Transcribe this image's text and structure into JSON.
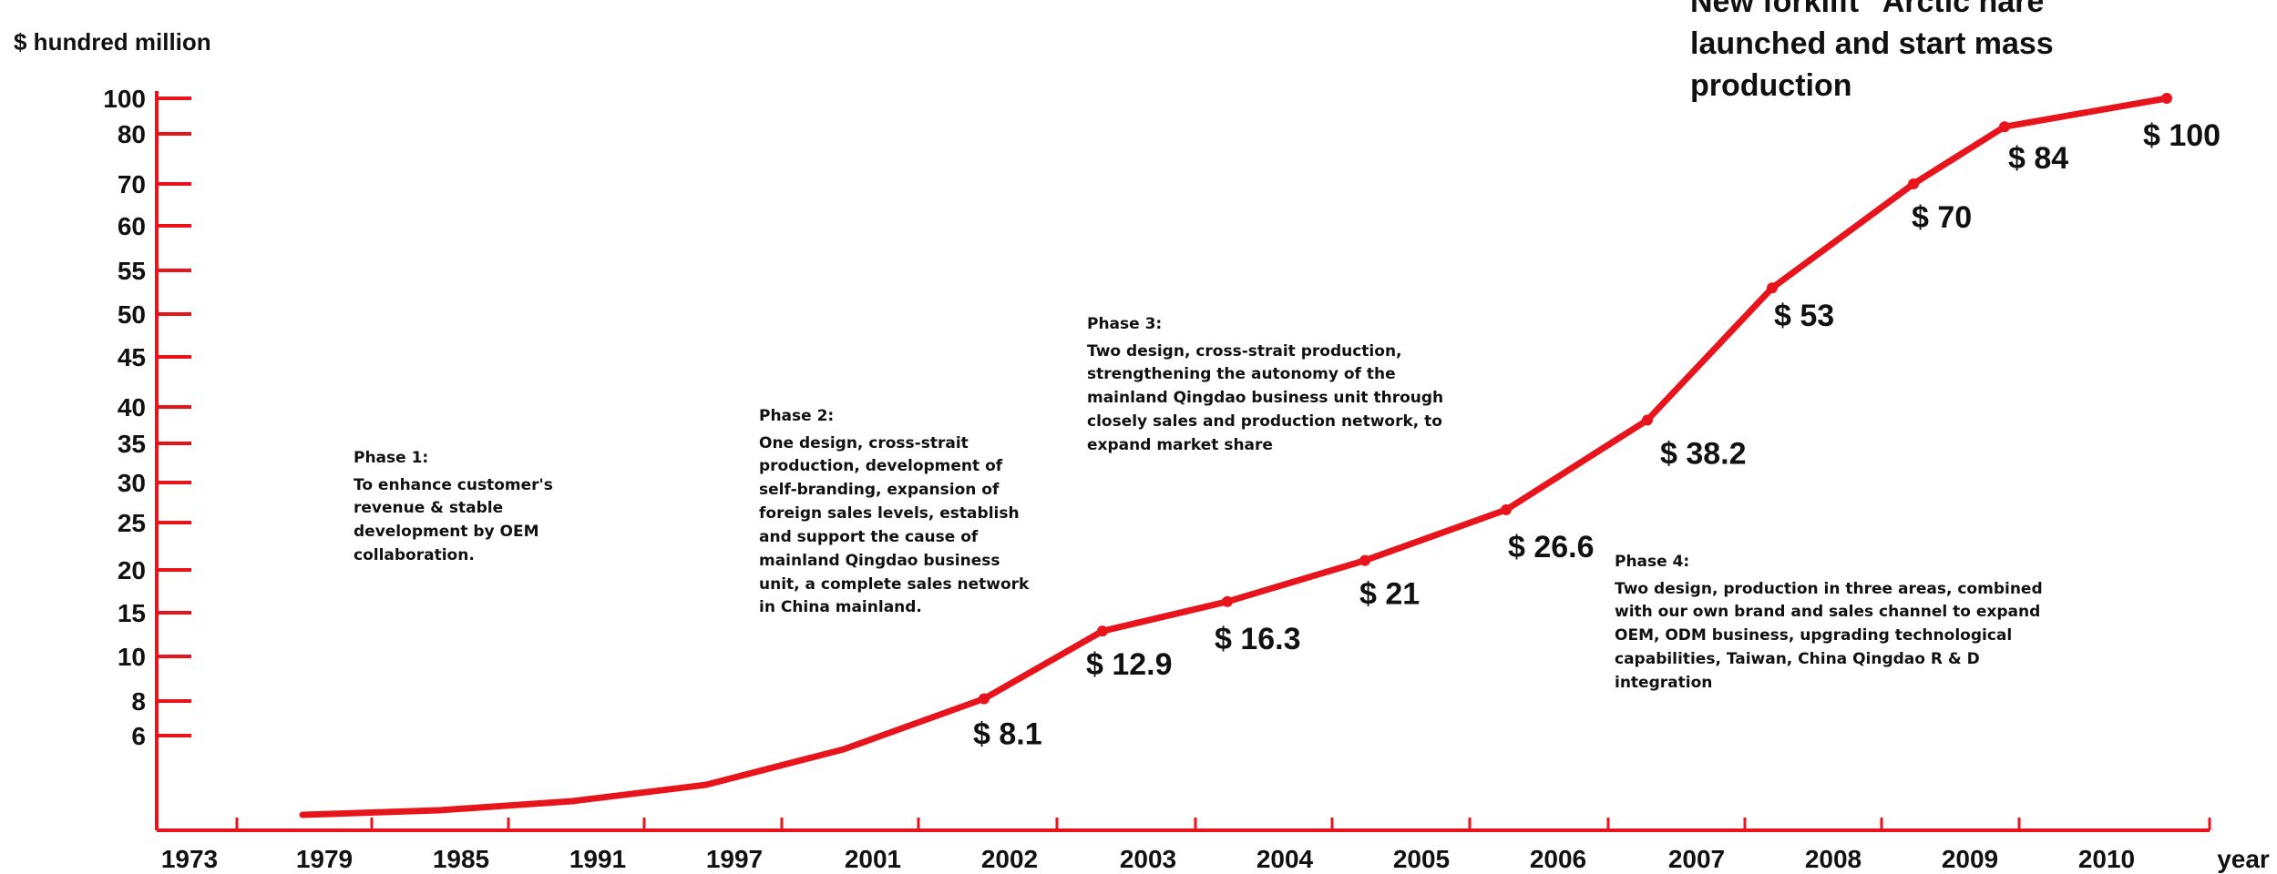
{
  "chart_data": {
    "type": "line",
    "ylabel": "$ hundred million",
    "xlabel": "year",
    "color": "#e8141c",
    "x": [
      "1973",
      "1979",
      "1985",
      "1991",
      "1997",
      "2001",
      "2002",
      "2003",
      "2004",
      "2005",
      "2006",
      "2007",
      "2008",
      "2009",
      "2010"
    ],
    "y_ticks": [
      "100",
      "80",
      "70",
      "60",
      "55",
      "50",
      "45",
      "40",
      "35",
      "30",
      "25",
      "20",
      "15",
      "10",
      "8",
      "6"
    ],
    "series": [
      {
        "points": [
          {
            "x": "1976",
            "y": null
          },
          {
            "x": "1982",
            "y": null
          },
          {
            "x": "1988",
            "y": null
          },
          {
            "x": "1994",
            "y": null
          },
          {
            "x": "1999",
            "y": null
          },
          {
            "x": "2001/2002",
            "y": 8.1,
            "label": "$ 8.1"
          },
          {
            "x": "2002/2003",
            "y": 12.9,
            "label": "$ 12.9"
          },
          {
            "x": "2003/2004",
            "y": 16.3,
            "label": "$ 16.3"
          },
          {
            "x": "2004/2005",
            "y": 21,
            "label": "$ 21"
          },
          {
            "x": "2005/2006",
            "y": 26.6,
            "label": "$ 26.6"
          },
          {
            "x": "2006/2007",
            "y": 38.2,
            "label": "$ 38.2"
          },
          {
            "x": "2007/2008",
            "y": 53,
            "label": "$ 53"
          },
          {
            "x": "2008/2009",
            "y": 70,
            "label": "$ 70"
          },
          {
            "x": "2009/2010",
            "y": 84,
            "label": "$ 84"
          },
          {
            "x": "2010",
            "y": 100,
            "label": "$ 100"
          }
        ]
      }
    ]
  },
  "annotations": {
    "phase1": {
      "title": "Phase 1:",
      "text": "To enhance customer's\nrevenue & stable\ndevelopment by OEM\ncollaboration."
    },
    "phase2": {
      "title": "Phase 2:",
      "text": "One design, cross-strait\nproduction, development of\nself-branding, expansion of\nforeign sales levels, establish\nand support the cause of\nmainland Qingdao business\nunit, a complete sales network\nin China mainland."
    },
    "phase3": {
      "title": "Phase 3:",
      "text": "Two design, cross-strait production,\nstrengthening the autonomy of the\nmainland Qingdao business unit through\nclosely sales and production network, to\nexpand market share"
    },
    "phase4": {
      "title": "Phase 4:",
      "text": "Two design, production in three areas, combined\nwith our own brand and sales channel to expand\nOEM, ODM business, upgrading technological\ncapabilities, Taiwan, China Qingdao R & D\nintegration"
    },
    "milestone": "New forklift \"Arctic hare\"\nlaunched and start mass\nproduction"
  }
}
